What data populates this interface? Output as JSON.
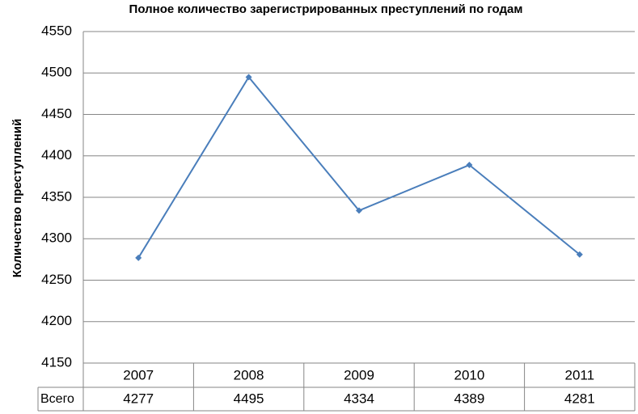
{
  "chart_data": {
    "type": "line",
    "title": "Полное количество зарегистрированных преступлений по годам",
    "y_label": "Количество преступлений",
    "categories": [
      "2007",
      "2008",
      "2009",
      "2010",
      "2011"
    ],
    "series": [
      {
        "name": "Всего",
        "color": "#4a7ebb",
        "values": [
          4277,
          4495,
          4334,
          4389,
          4281
        ]
      }
    ],
    "ylim": [
      4150,
      4550
    ],
    "yticks": [
      4150,
      4200,
      4250,
      4300,
      4350,
      4400,
      4450,
      4500,
      4550
    ],
    "grid": true,
    "data_table": true
  }
}
